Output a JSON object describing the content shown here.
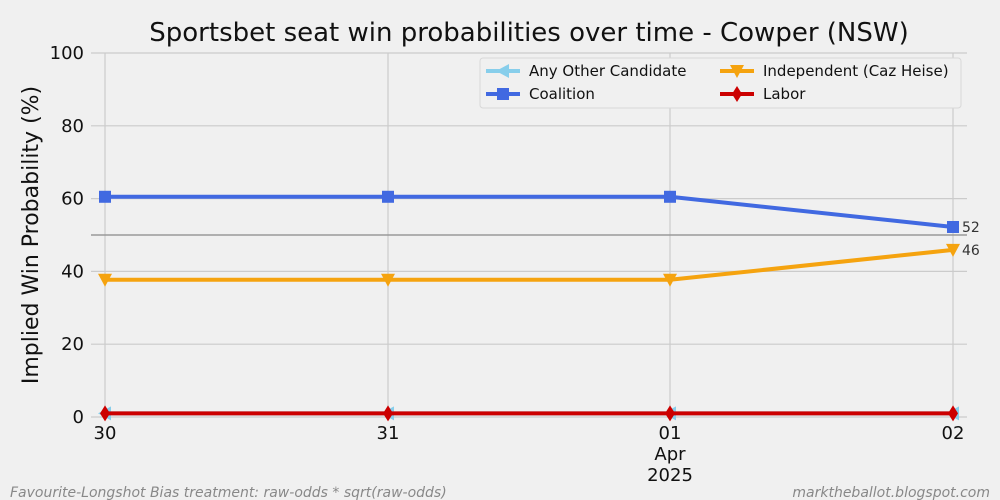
{
  "chart_data": {
    "type": "line",
    "title": "Sportsbet seat win probabilities over time - Cowper (NSW)",
    "ylabel": "Implied Win Probability (%)",
    "xlabel": "",
    "ylim": [
      0,
      100
    ],
    "yticks": [
      0,
      20,
      40,
      60,
      80,
      100
    ],
    "x": [
      "2025-03-30",
      "2025-03-31",
      "2025-04-01",
      "2025-04-02"
    ],
    "xtick_labels": [
      {
        "line1": "30",
        "line2": "",
        "line3": ""
      },
      {
        "line1": "31",
        "line2": "",
        "line3": ""
      },
      {
        "line1": "01",
        "line2": "Apr",
        "line3": "2025"
      },
      {
        "line1": "02",
        "line2": "",
        "line3": ""
      }
    ],
    "reference_line": 50,
    "grid": true,
    "legend_position": "top-right",
    "series": [
      {
        "name": "Any Other Candidate",
        "color": "#87ceeb",
        "marker": "triangle-left",
        "values": [
          1,
          1,
          1,
          1
        ]
      },
      {
        "name": "Coalition",
        "color": "#4169e1",
        "marker": "square",
        "values": [
          60.5,
          60.5,
          60.5,
          52.2
        ]
      },
      {
        "name": "Independent (Caz Heise)",
        "color": "#f5a30f",
        "marker": "triangle-down",
        "values": [
          37.7,
          37.7,
          37.7,
          45.9
        ]
      },
      {
        "name": "Labor",
        "color": "#cc0000",
        "marker": "diamond",
        "values": [
          1,
          1,
          1,
          1
        ]
      }
    ],
    "end_labels": [
      {
        "series": "Coalition",
        "text": "52"
      },
      {
        "series": "Independent (Caz Heise)",
        "text": "46"
      }
    ]
  },
  "footer": {
    "left": "Favourite-Longshot Bias treatment: raw-odds * sqrt(raw-odds)",
    "right": "marktheballot.blogspot.com"
  }
}
